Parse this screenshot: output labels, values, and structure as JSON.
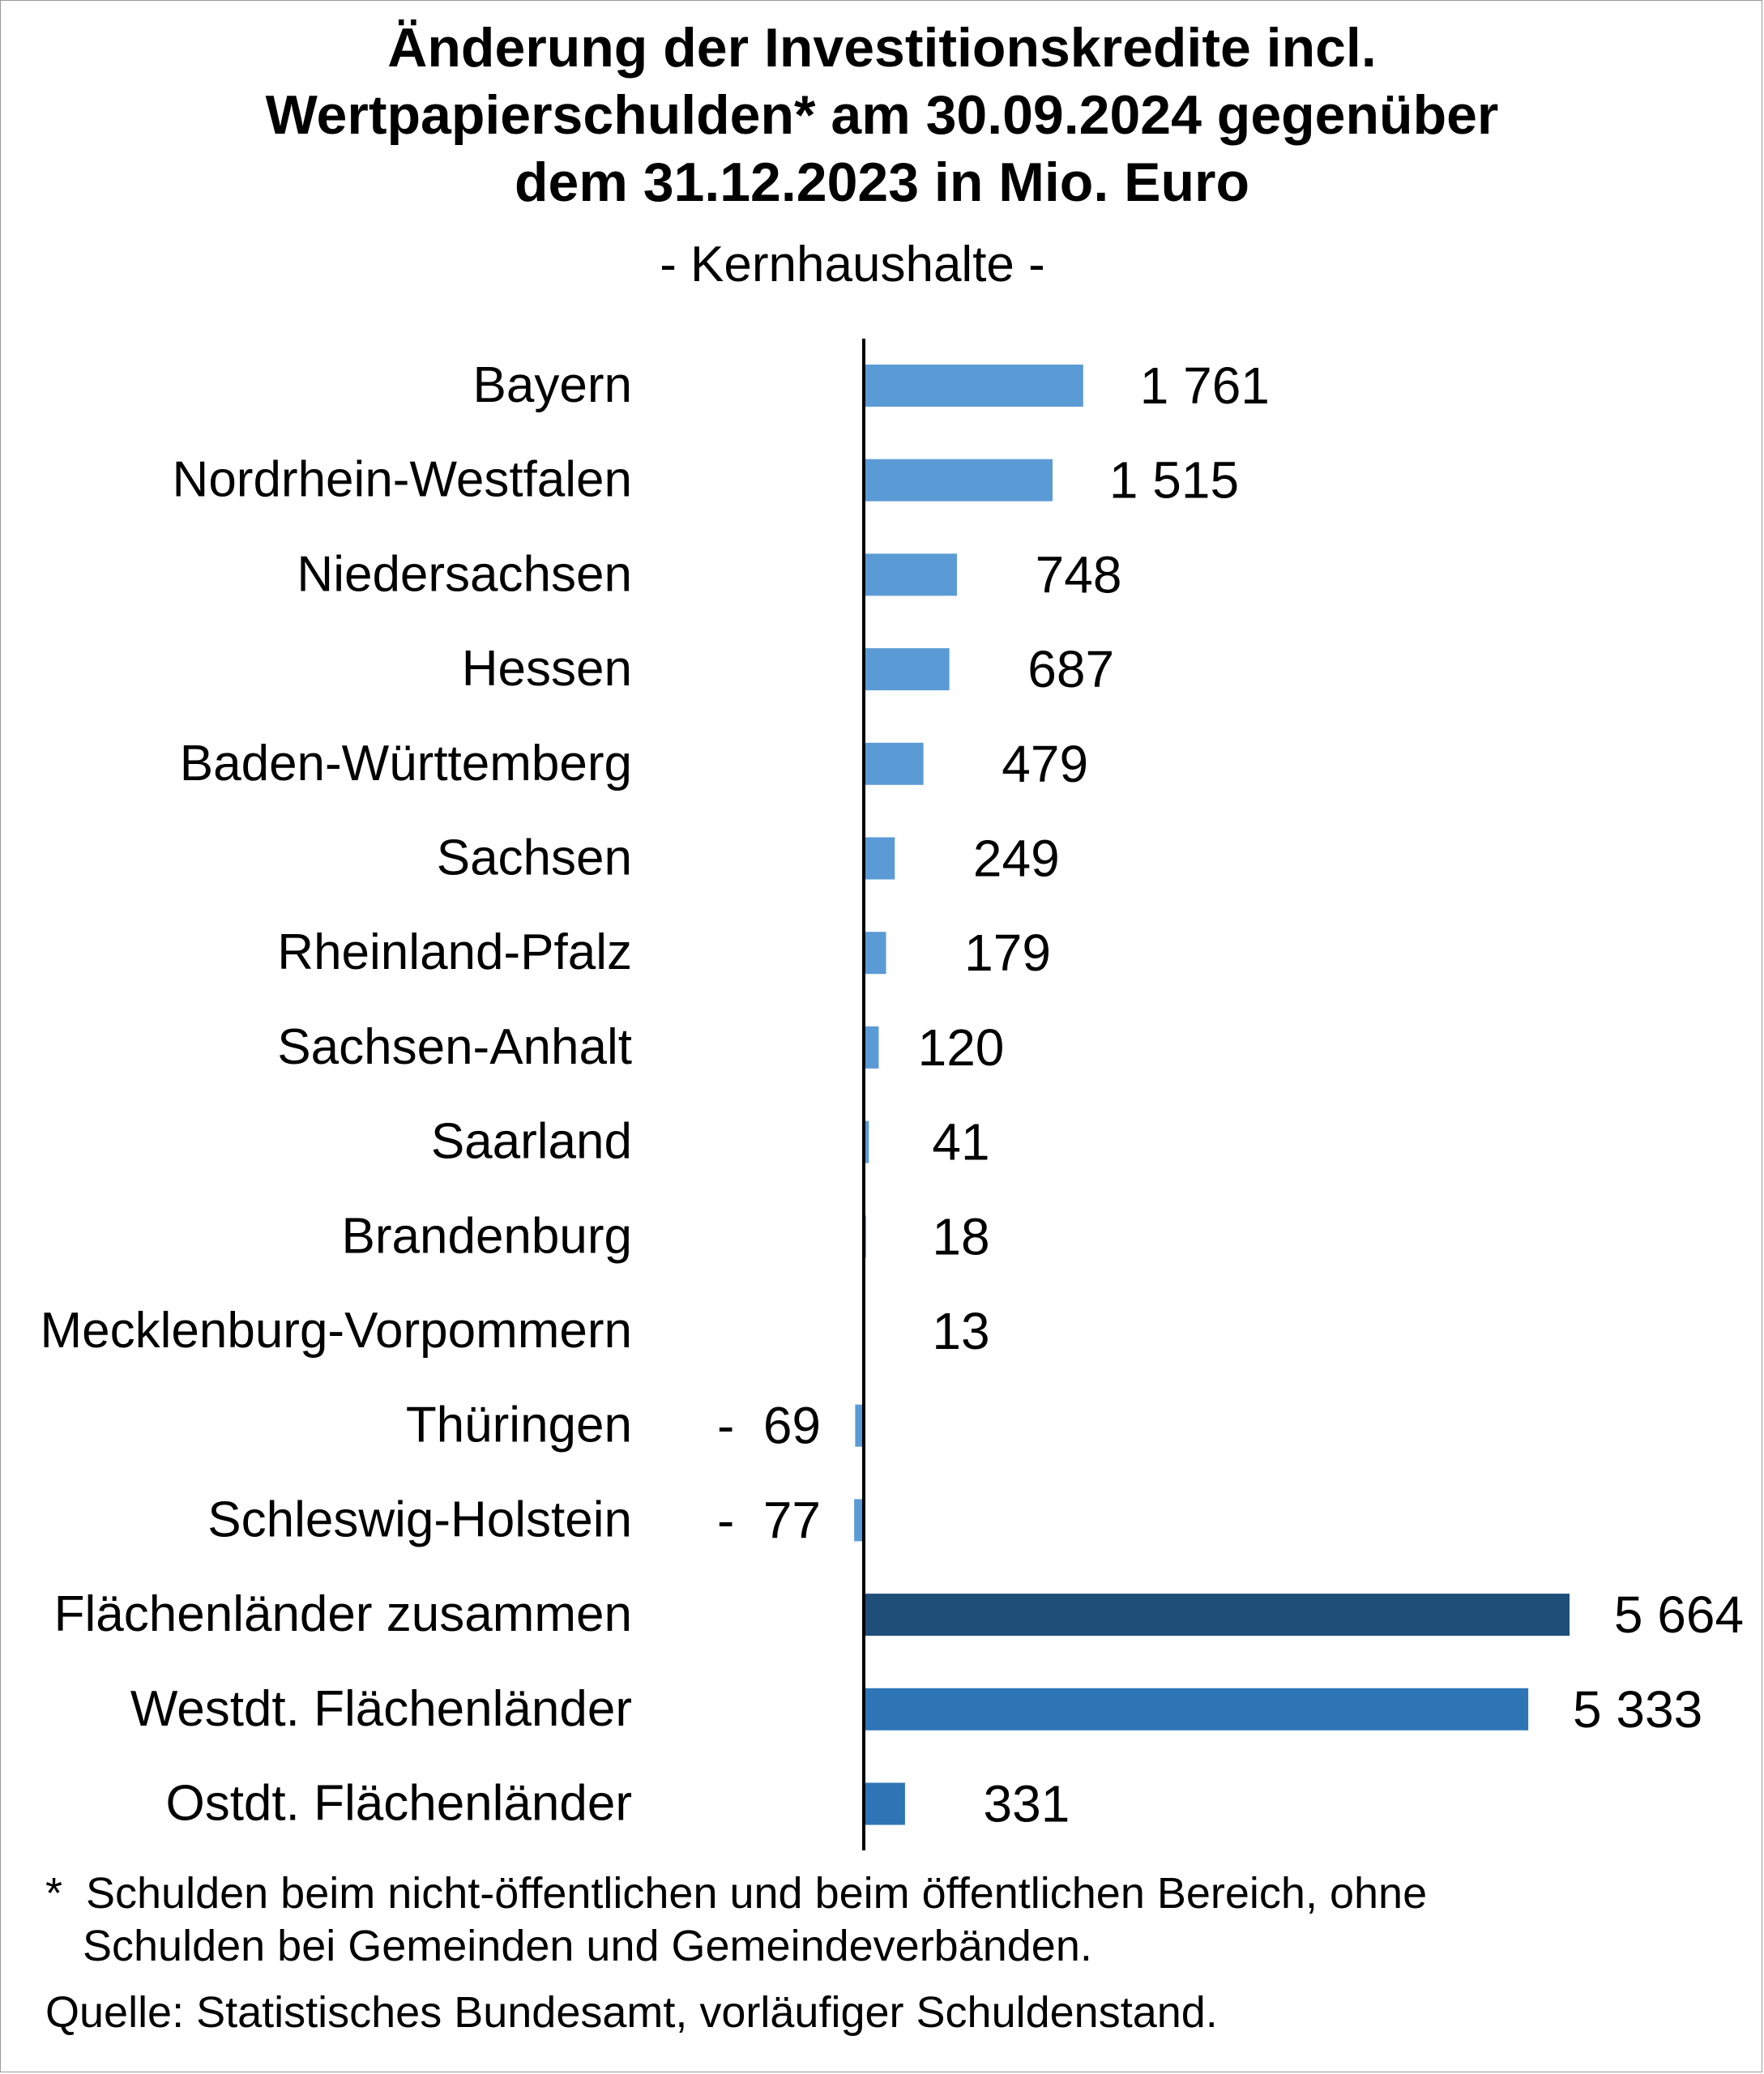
{
  "title_lines": [
    "Änderung der Investitionskredite incl.",
    "Wertpapierschulden* am 30.09.2024 gegenüber",
    "dem 31.12.2023 in Mio. Euro"
  ],
  "subtitle": "- Kernhaushalte -",
  "footnote": {
    "marker": "*",
    "line1": "Schulden beim nicht-öffentlichen und beim öffentlichen Bereich, ohne",
    "line2": "Schulden bei Gemeinden und Gemeindeverbänden."
  },
  "source": "Quelle: Statistisches Bundesamt, vorläufiger Schuldenstand.",
  "colors": {
    "state_bar": "#5b9bd5",
    "total_bar": "#1f4e79",
    "group_bar": "#2e75b6",
    "axis": "#000000"
  },
  "chart_data": {
    "type": "bar",
    "orientation": "horizontal",
    "categories": [
      "Bayern",
      "Nordrhein-Westfalen",
      "Niedersachsen",
      "Hessen",
      "Baden-Württemberg",
      "Sachsen",
      "Rheinland-Pfalz",
      "Sachsen-Anhalt",
      "Saarland",
      "Brandenburg",
      "Mecklenburg-Vorpommern",
      "Thüringen",
      "Schleswig-Holstein",
      "Flächenländer zusammen",
      "Westdt. Flächenländer",
      "Ostdt. Flächenländer"
    ],
    "values": [
      1761,
      1515,
      748,
      687,
      479,
      249,
      179,
      120,
      41,
      18,
      13,
      -69,
      -77,
      5664,
      5333,
      331
    ],
    "value_labels": [
      "1 761",
      "1 515",
      "748",
      "687",
      "479",
      "249",
      "179",
      "120",
      "41",
      "18",
      "13",
      "-  69",
      "-  77",
      "5 664",
      "5 333",
      "331"
    ],
    "bar_color_keys": [
      "state_bar",
      "state_bar",
      "state_bar",
      "state_bar",
      "state_bar",
      "state_bar",
      "state_bar",
      "state_bar",
      "state_bar",
      "state_bar",
      "state_bar",
      "state_bar",
      "state_bar",
      "total_bar",
      "group_bar",
      "group_bar"
    ],
    "xlim": [
      -77,
      5664
    ],
    "grid": false,
    "legend": "none"
  }
}
